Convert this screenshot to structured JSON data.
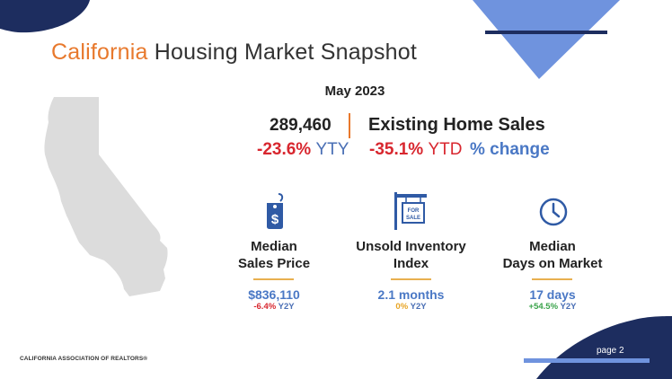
{
  "slide": {
    "title_accent": "California",
    "title_rest": " Housing Market Snapshot",
    "date": "May 2023",
    "page": "page 2",
    "footer": "CALIFORNIA ASSOCIATION OF REALTORS®"
  },
  "sales": {
    "value": "289,460",
    "label": "Existing Home Sales",
    "yty_value": "-23.6%",
    "yty_tag": "YTY",
    "ytd_value": "-35.1%",
    "ytd_tag": "YTD",
    "change_label": "% change"
  },
  "metrics": [
    {
      "label_line1": "Median",
      "label_line2": "Sales Price",
      "value": "$836,110",
      "change": "-6.4%",
      "period": "Y2Y",
      "icon": "price-tag-icon"
    },
    {
      "label_line1": "Unsold Inventory",
      "label_line2": "Index",
      "value": "2.1 months",
      "change": "0%",
      "period": "Y2Y",
      "icon": "for-sale-sign-icon"
    },
    {
      "label_line1": "Median",
      "label_line2": "Days on Market",
      "value": "17 days",
      "change": "+54.5%",
      "period": "Y2Y",
      "icon": "clock-icon"
    }
  ],
  "map_icon": "california-map-icon",
  "sign_text": "FOR SALE",
  "colors": {
    "accent_orange": "#e8792d",
    "navy": "#1d2d5f",
    "light_blue": "#6f93de",
    "negative": "#d8272f",
    "positive": "#3aa34a",
    "neutral": "#e8a526",
    "value_blue": "#4a78c5"
  }
}
